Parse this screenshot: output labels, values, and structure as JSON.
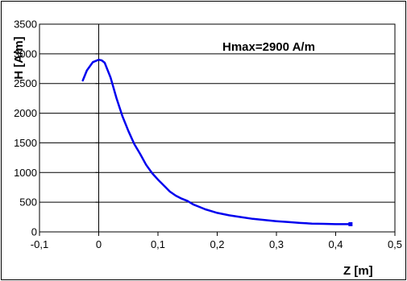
{
  "chart_data": {
    "type": "line",
    "title": "",
    "xlabel": "Z [m]",
    "ylabel": "H [A/m]",
    "xlim": [
      -0.1,
      0.5
    ],
    "ylim": [
      0,
      3500
    ],
    "x_ticks": [
      -0.1,
      0,
      0.1,
      0.2,
      0.3,
      0.4,
      0.5
    ],
    "x_tick_labels": [
      "-0,1",
      "0",
      "0,1",
      "0,2",
      "0,3",
      "0,4",
      "0,5"
    ],
    "y_ticks": [
      0,
      500,
      1000,
      1500,
      2000,
      2500,
      3000,
      3500
    ],
    "y_tick_labels": [
      "0",
      "500",
      "1000",
      "1500",
      "2000",
      "2500",
      "3000",
      "3500"
    ],
    "grid": "horizontal",
    "annotation": "Hmax=2900 A/m",
    "line_color": "#0000ee",
    "series": [
      {
        "x": [
          -0.027,
          -0.02,
          -0.01,
          0.0,
          0.005,
          0.01,
          0.02,
          0.03,
          0.04,
          0.05,
          0.06,
          0.07,
          0.08,
          0.09,
          0.1,
          0.11,
          0.12,
          0.13,
          0.14,
          0.15,
          0.16,
          0.17,
          0.18,
          0.19,
          0.2,
          0.22,
          0.24,
          0.26,
          0.28,
          0.3,
          0.32,
          0.34,
          0.36,
          0.38,
          0.4,
          0.42,
          0.425
        ],
        "y": [
          2550,
          2720,
          2860,
          2900,
          2890,
          2850,
          2600,
          2250,
          1950,
          1700,
          1480,
          1310,
          1130,
          990,
          880,
          780,
          680,
          610,
          560,
          520,
          460,
          420,
          380,
          350,
          320,
          280,
          250,
          220,
          200,
          180,
          165,
          150,
          140,
          135,
          130,
          130,
          130
        ]
      }
    ]
  }
}
